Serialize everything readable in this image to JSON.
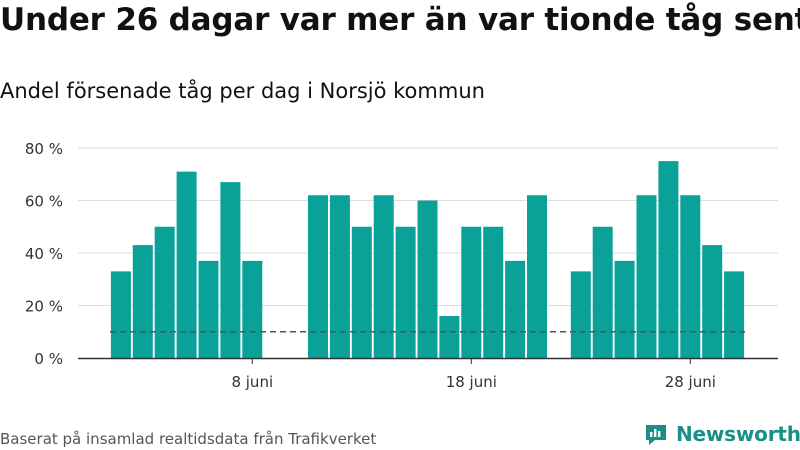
{
  "title": "Under 26 dagar var mer än var tionde tåg sent",
  "subtitle": "Andel försenade tåg per dag i Norsjö kommun",
  "footer": "Baserat på insamlad realtidsdata från Trafikverket",
  "brand": "Newsworthy",
  "colors": {
    "bar": "#0aa198",
    "grid": "#dddddd",
    "axis": "#333333",
    "reference": "#555555",
    "brand": "#1a8f87"
  },
  "chart_data": {
    "type": "bar",
    "title": "Under 26 dagar var mer än var tionde tåg sent",
    "subtitle": "Andel försenade tåg per dag i Norsjö kommun",
    "xlabel": "",
    "ylabel": "",
    "unit": "%",
    "ylim": [
      0,
      85
    ],
    "yticks": [
      0,
      20,
      40,
      60,
      80
    ],
    "ytick_labels": [
      "0 %",
      "20 %",
      "40 %",
      "60 %",
      "80 %"
    ],
    "xtick_labels": [
      {
        "day": 8,
        "label": "8 juni"
      },
      {
        "day": 18,
        "label": "18 juni"
      },
      {
        "day": 28,
        "label": "28 juni"
      }
    ],
    "x": [
      2,
      3,
      4,
      5,
      6,
      7,
      8,
      9,
      10,
      11,
      12,
      13,
      14,
      15,
      16,
      17,
      18,
      19,
      20,
      21,
      22,
      23,
      24,
      25,
      26,
      27,
      28,
      29,
      30
    ],
    "values": [
      33,
      43,
      50,
      71,
      37,
      67,
      37,
      null,
      null,
      62,
      62,
      50,
      62,
      50,
      60,
      16,
      50,
      50,
      37,
      62,
      null,
      33,
      50,
      37,
      62,
      75,
      62,
      43,
      33
    ],
    "reference_line": 10,
    "grid": true,
    "legend": "none"
  }
}
